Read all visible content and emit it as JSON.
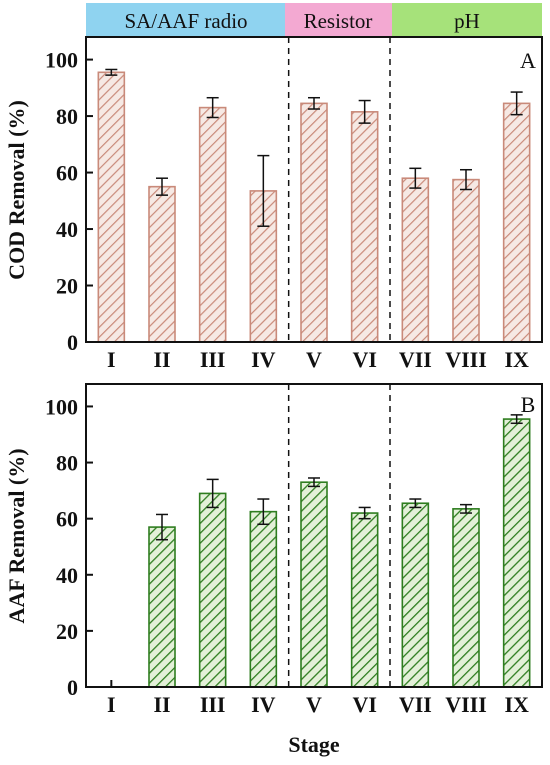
{
  "colors": {
    "cod_bar": "#c98a7a",
    "cod_fill": "#f6e9e4",
    "aaf_bar": "#2e7d1f",
    "aaf_fill": "#e3f0d8",
    "band_1": "#8fd3f0",
    "band_2": "#f3a9d2",
    "band_3": "#a6e27a"
  },
  "bands": [
    {
      "label": "SA/AAF radio"
    },
    {
      "label": "Resistor"
    },
    {
      "label": "pH"
    }
  ],
  "x_axis_label": "Stage",
  "chart_data": [
    {
      "type": "bar",
      "panel": "A",
      "ylabel": "COD Removal (%)",
      "ylim": [
        0,
        108
      ],
      "yticks": [
        0,
        20,
        40,
        60,
        80,
        100
      ],
      "categories": [
        "I",
        "II",
        "III",
        "IV",
        "V",
        "VI",
        "VII",
        "VIII",
        "IX"
      ],
      "values": [
        95.5,
        55,
        83,
        53.5,
        84.5,
        81.5,
        58,
        57.5,
        84.5
      ],
      "errors": [
        1,
        3,
        3.5,
        12.5,
        2,
        4,
        3.5,
        3.5,
        4
      ],
      "group_dividers_after": [
        4,
        6
      ]
    },
    {
      "type": "bar",
      "panel": "B",
      "ylabel": "AAF Removal (%)",
      "ylim": [
        0,
        108
      ],
      "yticks": [
        0,
        20,
        40,
        60,
        80,
        100
      ],
      "categories": [
        "I",
        "II",
        "III",
        "IV",
        "V",
        "VI",
        "VII",
        "VIII",
        "IX"
      ],
      "values": [
        null,
        57,
        69,
        62.5,
        73,
        62,
        65.5,
        63.5,
        95.5
      ],
      "errors": [
        null,
        4.5,
        5,
        4.5,
        1.5,
        2,
        1.5,
        1.5,
        1.5
      ],
      "group_dividers_after": [
        4,
        6
      ]
    }
  ]
}
